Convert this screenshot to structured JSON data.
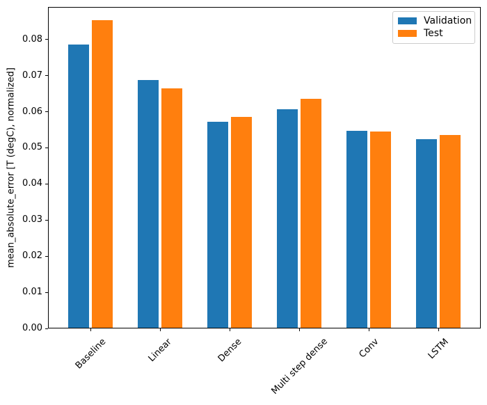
{
  "chart_data": {
    "type": "bar",
    "title": "",
    "categories": [
      "Baseline",
      "Linear",
      "Dense",
      "Multi step dense",
      "Conv",
      "LSTM"
    ],
    "series": [
      {
        "name": "Validation",
        "color": "#1f77b4",
        "values": [
          0.0785,
          0.0686,
          0.0571,
          0.0605,
          0.0545,
          0.0523
        ]
      },
      {
        "name": "Test",
        "color": "#ff7f0e",
        "values": [
          0.0852,
          0.0663,
          0.0583,
          0.0634,
          0.0543,
          0.0533
        ]
      }
    ],
    "xlabel": "",
    "ylabel": "mean_absolute_error [T (degC), normalized]",
    "ylim": [
      0,
      0.089
    ],
    "ytick_labels": [
      "0.00",
      "0.01",
      "0.02",
      "0.03",
      "0.04",
      "0.05",
      "0.06",
      "0.07",
      "0.08"
    ],
    "legend": {
      "position": "upper right",
      "entries": [
        "Validation",
        "Test"
      ]
    },
    "grid": false,
    "x_tick_rotation_deg": 45,
    "axis_color": "#000000",
    "background_color": "#ffffff"
  }
}
